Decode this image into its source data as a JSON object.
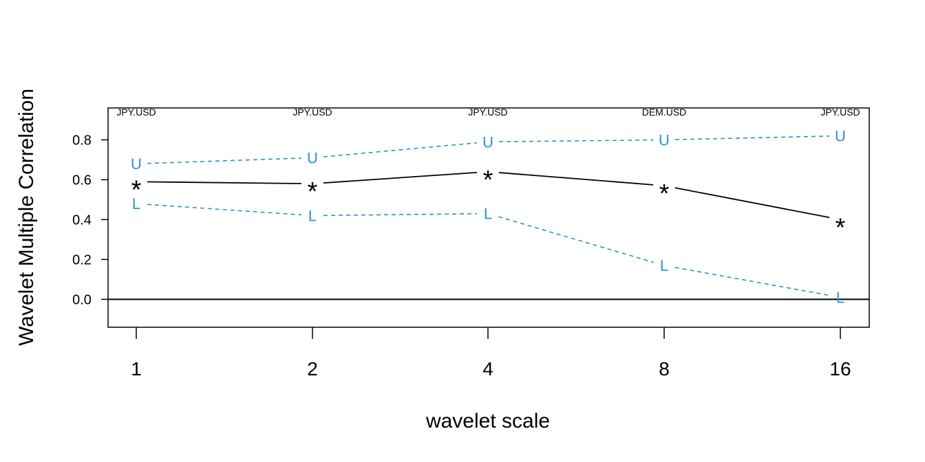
{
  "chart_data": {
    "type": "line",
    "xlabel": "wavelet scale",
    "ylabel": "Wavelet Multiple Correlation",
    "categories": [
      "1",
      "2",
      "4",
      "8",
      "16"
    ],
    "top_labels": [
      "JPY.USD",
      "JPY.USD",
      "JPY.USD",
      "DEM.USD",
      "JPY.USD"
    ],
    "ylim": [
      -0.14,
      0.96
    ],
    "yticks": [
      0.0,
      0.2,
      0.4,
      0.6,
      0.8
    ],
    "ytick_labels": [
      "0.0",
      "0.2",
      "0.4",
      "0.6",
      "0.8"
    ],
    "reference_line": 0.0,
    "series": [
      {
        "role": "estimate",
        "marker": "*",
        "color": "#000000",
        "style": "solid",
        "values": [
          0.59,
          0.58,
          0.64,
          0.57,
          0.4
        ]
      },
      {
        "role": "upper",
        "marker": "U",
        "color": "#2c8fd6",
        "style": "dashed",
        "values": [
          0.68,
          0.71,
          0.79,
          0.8,
          0.82
        ]
      },
      {
        "role": "lower",
        "marker": "L",
        "color": "#2c8fd6",
        "style": "dashed",
        "values": [
          0.48,
          0.42,
          0.43,
          0.17,
          0.01
        ]
      }
    ]
  }
}
